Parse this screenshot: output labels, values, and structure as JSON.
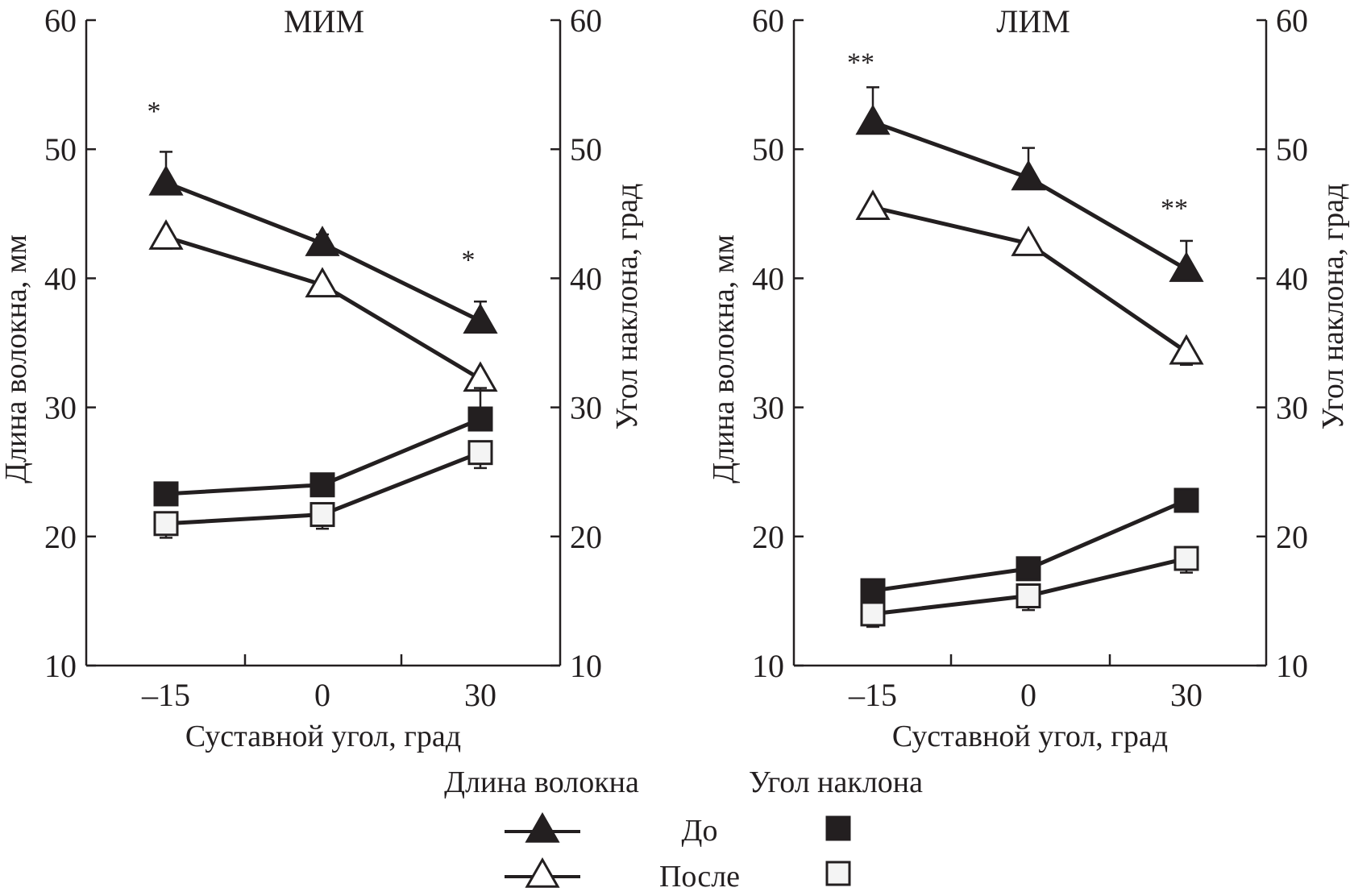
{
  "chart_data": [
    {
      "type": "line",
      "title": "МИМ",
      "xlabel": "Суставной угол, град",
      "ylabel_left": "Длина волокна, мм",
      "ylabel_right": "Угол наклона, град",
      "x": [
        -15,
        0,
        30
      ],
      "x_tick_labels": [
        "–15",
        "0",
        "30"
      ],
      "ylim": [
        10,
        60
      ],
      "y_ticks": [
        10,
        20,
        30,
        40,
        50,
        60
      ],
      "y_tick_labels": [
        "10",
        "20",
        "30",
        "40",
        "50",
        "60"
      ],
      "series": [
        {
          "name": "Длина волокна — До",
          "marker": "triangle-filled",
          "axis": "left",
          "values": [
            47.4,
            42.7,
            36.7
          ],
          "error_up": [
            2.4,
            0.7,
            1.5
          ]
        },
        {
          "name": "Длина волокна — После",
          "marker": "triangle-open",
          "axis": "left",
          "values": [
            43.2,
            39.5,
            32.2
          ],
          "error_down": [
            0.9,
            0.8,
            0
          ],
          "error_up": [
            0,
            0,
            0
          ]
        },
        {
          "name": "Угол наклона — До",
          "marker": "square-filled",
          "axis": "right",
          "values": [
            23.3,
            24.0,
            29.1
          ],
          "error_up": [
            0,
            0,
            2.4
          ]
        },
        {
          "name": "Угол наклона — После",
          "marker": "square-open",
          "axis": "right",
          "values": [
            21.0,
            21.7,
            26.5
          ],
          "error_down": [
            1.1,
            1.1,
            1.2
          ]
        }
      ],
      "annotations": [
        {
          "text": "*",
          "x": -15,
          "y": 53.0
        },
        {
          "text": "*",
          "x": 30,
          "y": 41.5
        }
      ]
    },
    {
      "type": "line",
      "title": "ЛИМ",
      "xlabel": "Суставной угол, град",
      "ylabel_left": "Длина волокна, мм",
      "ylabel_right": "Угол наклона, град",
      "x": [
        -15,
        0,
        30
      ],
      "x_tick_labels": [
        "–15",
        "0",
        "30"
      ],
      "ylim": [
        10,
        60
      ],
      "y_ticks": [
        10,
        20,
        30,
        40,
        50,
        60
      ],
      "y_tick_labels": [
        "10",
        "20",
        "30",
        "40",
        "50",
        "60"
      ],
      "series": [
        {
          "name": "Длина волокна — До",
          "marker": "triangle-filled",
          "axis": "left",
          "values": [
            52.1,
            47.8,
            40.7
          ],
          "error_up": [
            2.7,
            2.3,
            2.2
          ]
        },
        {
          "name": "Длина волокна — После",
          "marker": "triangle-open",
          "axis": "left",
          "values": [
            45.5,
            42.7,
            34.3
          ],
          "error_down": [
            0.6,
            0.8,
            1.0
          ]
        },
        {
          "name": "Угол наклона — До",
          "marker": "square-filled",
          "axis": "right",
          "values": [
            15.8,
            17.5,
            22.8
          ],
          "error_up": [
            0,
            0,
            0
          ]
        },
        {
          "name": "Угол наклона — После",
          "marker": "square-open",
          "axis": "right",
          "values": [
            14.0,
            15.4,
            18.3
          ],
          "error_down": [
            1.0,
            1.1,
            1.1
          ]
        }
      ],
      "annotations": [
        {
          "text": "**",
          "x": -15,
          "y": 56.8
        },
        {
          "text": "**",
          "x": 30,
          "y": 45.5
        }
      ]
    }
  ],
  "legend": {
    "col_headers": [
      "Длина волокна",
      "Угол наклона"
    ],
    "rows": [
      {
        "label": "До",
        "line_marker": "triangle-filled",
        "square_marker": "square-filled"
      },
      {
        "label": "После",
        "line_marker": "triangle-open",
        "square_marker": "square-open"
      }
    ],
    "placement": "bottom-center"
  },
  "colors": {
    "ink": "#231f20",
    "open_fill": "#f4f4f4",
    "background": "#ffffff"
  }
}
